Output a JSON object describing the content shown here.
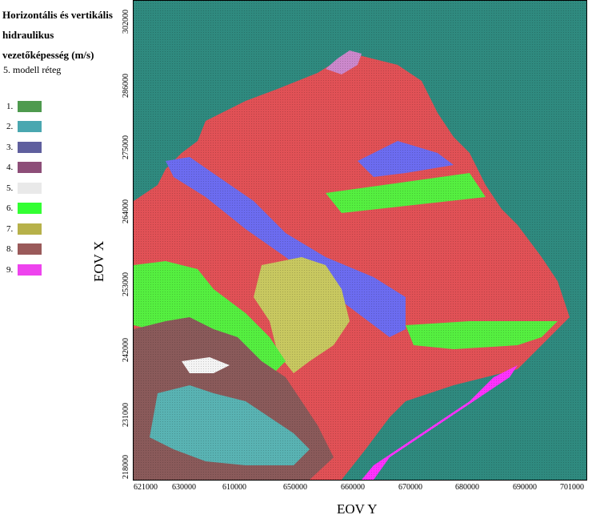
{
  "legend": {
    "title": "Horizontális és vertikális hidraulikus vezetőképesség (m/s)",
    "subtitle": "5. modell réteg",
    "items": [
      {
        "label": "1.",
        "color": "#4e9a4e"
      },
      {
        "label": "2.",
        "color": "#4aa7b0"
      },
      {
        "label": "3.",
        "color": "#5f5f9e"
      },
      {
        "label": "4.",
        "color": "#8d4e78"
      },
      {
        "label": "5.",
        "color": "#e9e9e9"
      },
      {
        "label": "6.",
        "color": "#33ff33"
      },
      {
        "label": "7.",
        "color": "#b7b14a"
      },
      {
        "label": "8.",
        "color": "#9a5a5a"
      },
      {
        "label": "9.",
        "color": "#ee44ee"
      }
    ]
  },
  "map": {
    "background_color": "#2f8a7f",
    "zone_colors": {
      "red": "#e15156",
      "blue": "#6c6cf0",
      "green": "#55ef40",
      "olive": "#c8c860",
      "brown": "#8a5a5a",
      "cyan": "#59b3b3",
      "pink": "#cc88cc",
      "magenta": "#ff33ff",
      "white": "#f4f4f4"
    }
  },
  "axes": {
    "x_label": "EOV Y",
    "y_label": "EOV X",
    "x_ticks": [
      "621000",
      "630000",
      "610000",
      "650000",
      "660000",
      "670000",
      "680000",
      "690000",
      "701000"
    ],
    "y_ticks": [
      "302000",
      "286000",
      "275000",
      "264000",
      "253000",
      "242000",
      "231000",
      "218000"
    ]
  }
}
